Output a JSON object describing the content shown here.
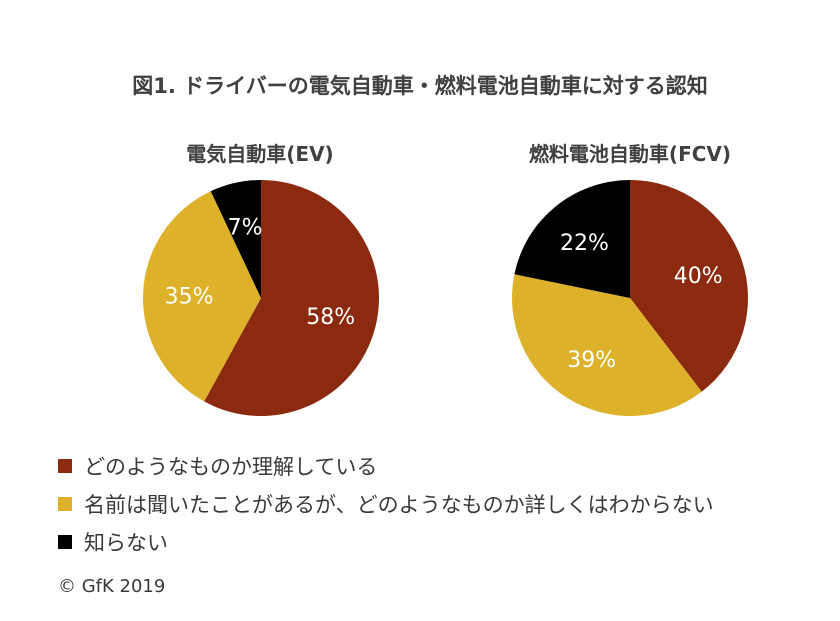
{
  "chart_data": {
    "type": "pie",
    "title": "図1. ドライバーの電気自動車・燃料電池自動車に対する認知",
    "categories": [
      "どのようなものか理解している",
      "名前は聞いたことがあるが、どのようなものか詳しくはわからない",
      "知らない"
    ],
    "colors": [
      "#8B2A0E",
      "#DDB22A",
      "#000000"
    ],
    "label_colors": [
      "#ffffff",
      "#ffffff",
      "#ffffff"
    ],
    "pies": [
      {
        "name": "電気自動車(EV)",
        "values": [
          58,
          35,
          7
        ],
        "labels": [
          "58%",
          "35%",
          "7%"
        ]
      },
      {
        "name": "燃料電池自動車(FCV)",
        "values": [
          40,
          39,
          22
        ],
        "labels": [
          "40%",
          "39%",
          "22%"
        ]
      }
    ],
    "legend_position": "bottom-left"
  },
  "footer": {
    "copyright": "© GfK 2019"
  }
}
